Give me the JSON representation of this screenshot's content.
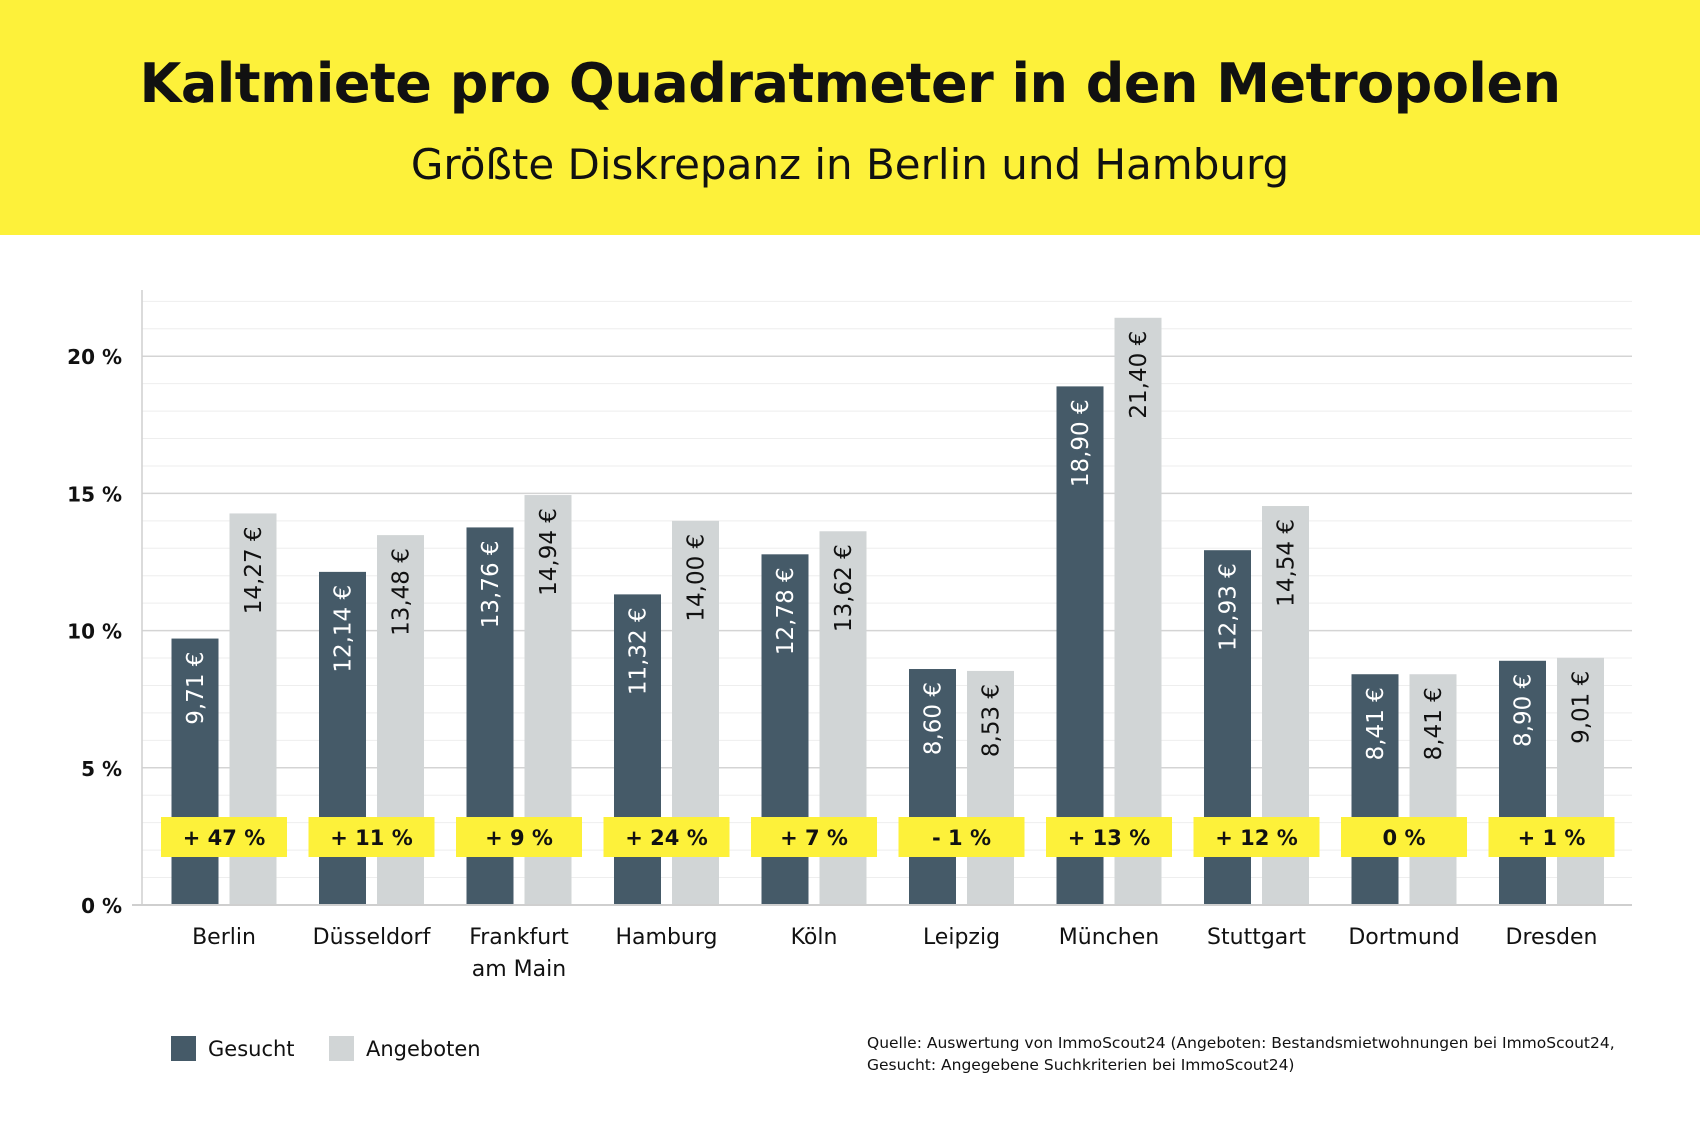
{
  "header": {
    "title": "Kaltmiete pro Quadratmeter in den Metropolen",
    "subtitle": "Größte Diskrepanz in Berlin und Hamburg"
  },
  "legend": {
    "gesucht": "Gesucht",
    "angeboten": "Angeboten"
  },
  "source": {
    "line1": "Quelle: Auswertung von ImmoScout24 (Angeboten: Bestandsmietwohnungen bei ImmoScout24,",
    "line2": "Gesucht: Angegebene Suchkriterien bei ImmoScout24)"
  },
  "colors": {
    "gesucht": "#455a68",
    "angeboten": "#d1d5d6",
    "accent": "#fdf13a",
    "grid": "#d4d4d4"
  },
  "chart_data": {
    "type": "bar",
    "title": "Kaltmiete pro Quadratmeter in den Metropolen",
    "subtitle": "Größte Diskrepanz in Berlin und Hamburg",
    "categories": [
      [
        "Berlin"
      ],
      [
        "Düsseldorf"
      ],
      [
        "Frankfurt",
        "am Main"
      ],
      [
        "Hamburg"
      ],
      [
        "Köln"
      ],
      [
        "Leipzig"
      ],
      [
        "München"
      ],
      [
        "Stuttgart"
      ],
      [
        "Dortmund"
      ],
      [
        "Dresden"
      ]
    ],
    "series": [
      {
        "name": "Gesucht",
        "values": [
          9.71,
          12.14,
          13.76,
          11.32,
          12.78,
          8.6,
          18.9,
          12.93,
          8.41,
          8.9
        ],
        "labels": [
          "9,71 €",
          "12,14 €",
          "13,76 €",
          "11,32 €",
          "12,78 €",
          "8,60 €",
          "18,90 €",
          "12,93 €",
          "8,41 €",
          "8,90 €"
        ]
      },
      {
        "name": "Angeboten",
        "values": [
          14.27,
          13.48,
          14.94,
          14.0,
          13.62,
          8.53,
          21.4,
          14.54,
          8.41,
          9.01
        ],
        "labels": [
          "14,27 €",
          "13,48 €",
          "14,94 €",
          "14,00 €",
          "13,62 €",
          "8,53 €",
          "21,40 €",
          "14,54 €",
          "8,41 €",
          "9,01 €"
        ]
      }
    ],
    "differences": [
      "+ 47 %",
      "+ 11 %",
      "+ 9 %",
      "+ 24 %",
      "+ 7 %",
      "- 1 %",
      "+ 13 %",
      "+ 12 %",
      "0 %",
      "+ 1 %"
    ],
    "yticks": [
      {
        "value": 0,
        "label": "0 %"
      },
      {
        "value": 5,
        "label": "5 %"
      },
      {
        "value": 10,
        "label": "10 %"
      },
      {
        "value": 15,
        "label": "15 %"
      },
      {
        "value": 20,
        "label": "20 %"
      }
    ],
    "ylim": [
      0,
      22.5
    ],
    "minor_step": 1,
    "grid": true,
    "legend_position": "bottom-left"
  }
}
